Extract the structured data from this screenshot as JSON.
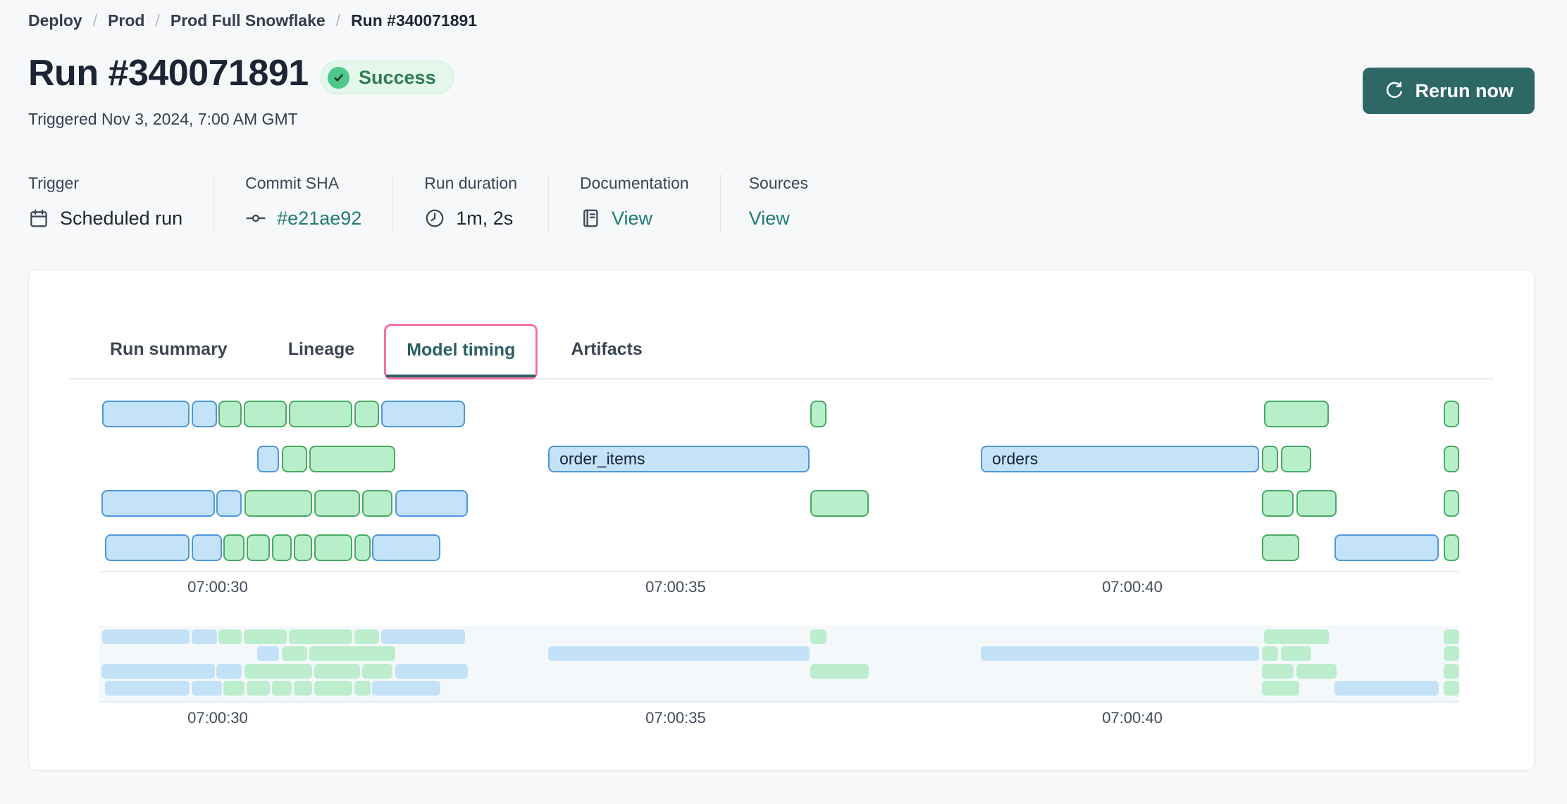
{
  "breadcrumb": {
    "separator": "/",
    "items": [
      "Deploy",
      "Prod",
      "Prod Full Snowflake",
      "Run #340071891"
    ]
  },
  "header": {
    "title": "Run #340071891",
    "status_label": "Success",
    "triggered": "Triggered Nov 3, 2024, 7:00 AM GMT",
    "rerun_label": "Rerun now"
  },
  "meta": {
    "trigger": {
      "label": "Trigger",
      "value": "Scheduled run"
    },
    "commit": {
      "label": "Commit SHA",
      "value": "#e21ae92"
    },
    "duration": {
      "label": "Run duration",
      "value": "1m, 2s"
    },
    "documentation": {
      "label": "Documentation",
      "value": "View"
    },
    "sources": {
      "label": "Sources",
      "value": "View"
    }
  },
  "tabs": {
    "run_summary": "Run summary",
    "lineage": "Lineage",
    "model_timing": "Model timing",
    "artifacts": "Artifacts",
    "active": "Model timing"
  },
  "chart_data": {
    "type": "gantt",
    "title": "Model timing",
    "x_ticks": [
      {
        "label": "07:00:30",
        "pos_pct": 8.7
      },
      {
        "label": "07:00:35",
        "pos_pct": 42.38
      },
      {
        "label": "07:00:40",
        "pos_pct": 75.96
      }
    ],
    "has_minimap": true,
    "rows": [
      {
        "bars": [
          {
            "color": "blue",
            "left_pct": 0.21,
            "width_pct": 6.42
          },
          {
            "color": "blue",
            "left_pct": 6.79,
            "width_pct": 1.87
          },
          {
            "color": "green",
            "left_pct": 8.76,
            "width_pct": 1.71
          },
          {
            "color": "green",
            "left_pct": 10.62,
            "width_pct": 3.16
          },
          {
            "color": "green",
            "left_pct": 13.94,
            "width_pct": 4.66
          },
          {
            "color": "green",
            "left_pct": 18.76,
            "width_pct": 1.81
          },
          {
            "color": "blue",
            "left_pct": 20.73,
            "width_pct": 6.17
          },
          {
            "color": "green",
            "left_pct": 52.28,
            "width_pct": 1.19
          },
          {
            "color": "green",
            "left_pct": 85.65,
            "width_pct": 4.77
          },
          {
            "color": "green",
            "left_pct": 98.86,
            "width_pct": 1.14
          }
        ]
      },
      {
        "bars": [
          {
            "color": "blue",
            "left_pct": 11.61,
            "width_pct": 1.61
          },
          {
            "color": "green",
            "left_pct": 13.42,
            "width_pct": 1.87
          },
          {
            "color": "green",
            "left_pct": 15.44,
            "width_pct": 6.32
          },
          {
            "color": "blue",
            "left_pct": 33.01,
            "width_pct": 19.22,
            "label": "order_items"
          },
          {
            "color": "blue",
            "left_pct": 64.82,
            "width_pct": 20.47,
            "label": "orders"
          },
          {
            "color": "green",
            "left_pct": 85.49,
            "width_pct": 1.19
          },
          {
            "color": "green",
            "left_pct": 86.89,
            "width_pct": 2.23
          },
          {
            "color": "green",
            "left_pct": 98.86,
            "width_pct": 1.14
          }
        ]
      },
      {
        "bars": [
          {
            "color": "blue",
            "left_pct": 0.16,
            "width_pct": 8.34
          },
          {
            "color": "blue",
            "left_pct": 8.6,
            "width_pct": 1.87
          },
          {
            "color": "green",
            "left_pct": 10.67,
            "width_pct": 4.97
          },
          {
            "color": "green",
            "left_pct": 15.8,
            "width_pct": 3.37
          },
          {
            "color": "green",
            "left_pct": 19.33,
            "width_pct": 2.23
          },
          {
            "color": "blue",
            "left_pct": 21.76,
            "width_pct": 5.34
          },
          {
            "color": "green",
            "left_pct": 52.28,
            "width_pct": 4.3
          },
          {
            "color": "green",
            "left_pct": 85.49,
            "width_pct": 2.33
          },
          {
            "color": "green",
            "left_pct": 88.03,
            "width_pct": 2.95
          },
          {
            "color": "green",
            "left_pct": 98.86,
            "width_pct": 1.14
          }
        ]
      },
      {
        "bars": [
          {
            "color": "blue",
            "left_pct": 0.41,
            "width_pct": 6.22
          },
          {
            "color": "blue",
            "left_pct": 6.79,
            "width_pct": 2.23
          },
          {
            "color": "green",
            "left_pct": 9.12,
            "width_pct": 1.55
          },
          {
            "color": "green",
            "left_pct": 10.83,
            "width_pct": 1.71
          },
          {
            "color": "green",
            "left_pct": 12.69,
            "width_pct": 1.45
          },
          {
            "color": "green",
            "left_pct": 14.3,
            "width_pct": 1.35
          },
          {
            "color": "green",
            "left_pct": 15.8,
            "width_pct": 2.8
          },
          {
            "color": "green",
            "left_pct": 18.76,
            "width_pct": 1.19
          },
          {
            "color": "blue",
            "left_pct": 20.05,
            "width_pct": 5.03
          },
          {
            "color": "green",
            "left_pct": 85.49,
            "width_pct": 2.75
          },
          {
            "color": "blue",
            "left_pct": 90.83,
            "width_pct": 7.67
          },
          {
            "color": "green",
            "left_pct": 98.86,
            "width_pct": 1.14
          }
        ]
      }
    ]
  },
  "colors": {
    "page_bg": "#f7f8fa",
    "accent_teal_button": "#2e6866",
    "link_teal": "#1f7c77",
    "success_bg": "#e3f8eb",
    "success_text": "#2d7c51",
    "success_dot": "#4ec88c",
    "active_tab_text": "#2b5f63",
    "active_tab_highlight_pink": "#f173ac",
    "bar_blue_fill": "#c4e2f8",
    "bar_blue_border": "#4f97da",
    "bar_green_fill": "#b9eeca",
    "bar_green_border": "#47ab63",
    "mini_blue": "#c3e2f8",
    "mini_green": "#bceecd"
  }
}
